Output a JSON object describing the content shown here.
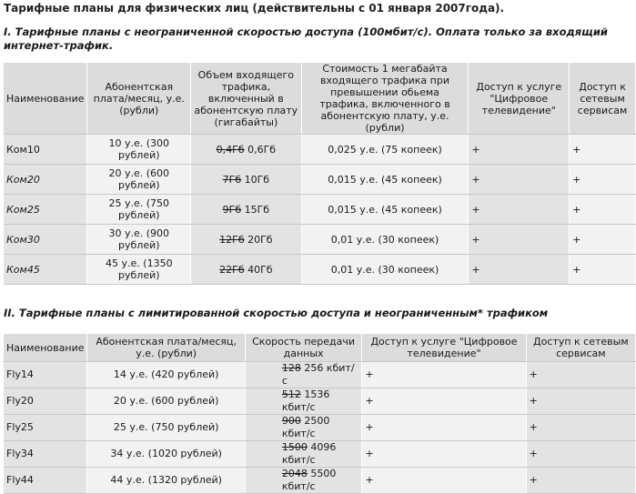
{
  "page_title": "Тарифные планы для физических лиц (действительны с 01 января 2007года).",
  "section1": {
    "heading": "I. Тарифные планы с неограниченной скоростью доступа (100мбит/с). Оплата только за входящий интернет-трафик.",
    "headers": {
      "name": "Наименование",
      "fee": "Абонентская плата/месяц, у.е. (рубли)",
      "volume": "Объем входящего трафика, включенный в абонентскую плату (гигабайты)",
      "price": "Стоимость 1 мегабайта входящего трафика при превышении обьема трафика, включенного в абонентскую плату, у.е. (рубли)",
      "tv": "Доступ к услуге \"Цифровое телевидение\"",
      "net": "Доступ к сетевым сервисам"
    },
    "rows": [
      {
        "name": "Ком10",
        "fee": "10 у.е. (300 рублей)",
        "vol_old": "0,4Гб",
        "vol_new": " 0,6Гб",
        "price": "0,025 у.е. (75 копеек)",
        "tv": "+",
        "net": "+"
      },
      {
        "name": "Ком20",
        "fee": "20 у.е. (600 рублей)",
        "vol_old": "7Гб",
        "vol_new": " 10Гб",
        "price": "0,015 у.е. (45 копеек)",
        "tv": "+",
        "net": "+"
      },
      {
        "name": "Ком25",
        "fee": "25 у.е. (750 рублей)",
        "vol_old": "9Гб",
        "vol_new": " 15Гб",
        "price": "0,015 у.е. (45 копеек)",
        "tv": "+",
        "net": "+"
      },
      {
        "name": "Ком30",
        "fee": "30 у.е. (900 рублей)",
        "vol_old": "12Гб",
        "vol_new": " 20Гб",
        "price": "0,01 у.е. (30 копеек)",
        "tv": "+",
        "net": "+"
      },
      {
        "name": "Ком45",
        "fee": "45 у.е. (1350 рублей)",
        "vol_old": "22Гб",
        "vol_new": " 40Гб",
        "price": "0,01 у.е. (30 копеек)",
        "tv": "+",
        "net": "+"
      }
    ]
  },
  "section2": {
    "heading": "II. Тарифные планы с лимитированной скоростью доступа и неограниченным* трафиком",
    "headers": {
      "name": "Наименование",
      "fee": "Абонентская плата/месяц, у.е. (рубли)",
      "speed": "Скорость передачи данных",
      "tv": "Доступ к услуге \"Цифровое телевидение\"",
      "net": "Доступ к сетевым сервисам"
    },
    "rows": [
      {
        "name": "Fly14",
        "fee": "14 у.е. (420 рублей)",
        "speed_old": "128",
        "speed_new": " 256 кбит/с",
        "tv": "+",
        "net": "+"
      },
      {
        "name": "Fly20",
        "fee": "20 у.е. (600 рублей)",
        "speed_old": "512",
        "speed_new": " 1536 кбит/с",
        "tv": "+",
        "net": "+"
      },
      {
        "name": "Fly25",
        "fee": "25 у.е. (750 рублей)",
        "speed_old": "900",
        "speed_new": " 2500 кбит/с",
        "tv": "+",
        "net": "+"
      },
      {
        "name": "Fly34",
        "fee": "34 у.е. (1020 рублей)",
        "speed_old": "1500",
        "speed_new": " 4096 кбит/с",
        "tv": "+",
        "net": "+"
      },
      {
        "name": "Fly44",
        "fee": "44 у.е. (1320 рублей)",
        "speed_old": "2048",
        "speed_new": " 5500 кбит/с",
        "tv": "+",
        "net": "+"
      }
    ]
  }
}
